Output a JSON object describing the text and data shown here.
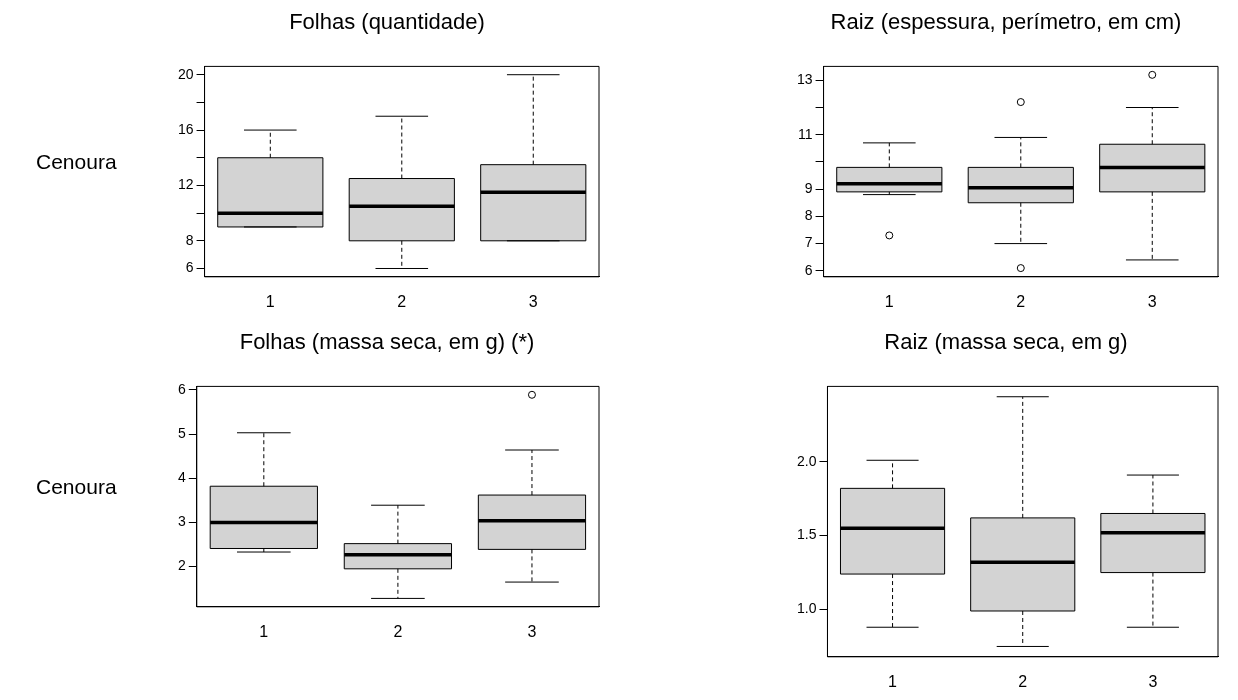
{
  "chart_data": [
    {
      "type": "box",
      "title": "Folhas (quantidade)",
      "annotations": [
        "Cenoura"
      ],
      "categories": [
        "1",
        "2",
        "3"
      ],
      "color": "#d3d3d3",
      "ylim": [
        5.4,
        20.6
      ],
      "yticks": [
        6,
        8,
        {
          "value": 10,
          "label": null
        },
        12,
        {
          "value": 14,
          "label": null
        },
        16,
        {
          "value": 18,
          "label": null
        },
        20
      ],
      "grid": false,
      "legend": false,
      "boxes": [
        {
          "low": 9,
          "q1": 9,
          "median": 10,
          "q3": 14,
          "high": 16
        },
        {
          "low": 6,
          "q1": 8,
          "median": 10.5,
          "q3": 12.5,
          "high": 17
        },
        {
          "low": 8,
          "q1": 8,
          "median": 11.5,
          "q3": 13.5,
          "high": 20
        }
      ]
    },
    {
      "type": "box",
      "title": "Raiz (espessura, perímetro, em cm)",
      "categories": [
        "1",
        "2",
        "3"
      ],
      "color": "#d3d3d3",
      "ylim": [
        5.78,
        13.51
      ],
      "yticks": [
        6,
        7,
        8,
        9,
        {
          "value": 10,
          "label": null
        },
        11,
        {
          "value": 12,
          "label": null
        },
        13
      ],
      "grid": false,
      "legend": false,
      "boxes": [
        {
          "low": 8.8,
          "q1": 8.9,
          "median": 9.2,
          "q3": 9.8,
          "high": 10.7,
          "outliers": [
            7.3
          ]
        },
        {
          "low": 7.0,
          "q1": 8.5,
          "median": 9.05,
          "q3": 9.8,
          "high": 10.9,
          "outliers": [
            12.2,
            6.1
          ]
        },
        {
          "low": 6.4,
          "q1": 8.9,
          "median": 9.8,
          "q3": 10.65,
          "high": 12.0,
          "outliers": [
            13.2
          ]
        }
      ]
    },
    {
      "type": "box",
      "title": "Folhas (massa seca, em g) (*)",
      "annotations": [
        "Cenoura"
      ],
      "categories": [
        "1",
        "2",
        "3"
      ],
      "color": "#d3d3d3",
      "ylim": [
        1.09,
        6.08
      ],
      "yticks": [
        2,
        3,
        4,
        5,
        6
      ],
      "grid": false,
      "legend": false,
      "boxes": [
        {
          "low": 2.33,
          "q1": 2.41,
          "median": 3.0,
          "q3": 3.82,
          "high": 5.03
        },
        {
          "low": 1.28,
          "q1": 1.95,
          "median": 2.27,
          "q3": 2.52,
          "high": 3.39
        },
        {
          "low": 1.65,
          "q1": 2.39,
          "median": 3.04,
          "q3": 3.62,
          "high": 4.64,
          "outliers": [
            5.89
          ]
        }
      ]
    },
    {
      "type": "box",
      "title": "Raiz (massa seca, em g)",
      "categories": [
        "1",
        "2",
        "3"
      ],
      "color": "#d3d3d3",
      "ylim": [
        0.68,
        2.51
      ],
      "yticks": [
        {
          "value": 1,
          "label": "1.0"
        },
        {
          "value": 1.5,
          "label": "1.5"
        },
        {
          "value": 2,
          "label": "2.0"
        }
      ],
      "grid": false,
      "legend": false,
      "boxes": [
        {
          "low": 0.88,
          "q1": 1.24,
          "median": 1.55,
          "q3": 1.82,
          "high": 2.01
        },
        {
          "low": 0.75,
          "q1": 0.99,
          "median": 1.32,
          "q3": 1.62,
          "high": 2.44
        },
        {
          "low": 0.88,
          "q1": 1.25,
          "median": 1.52,
          "q3": 1.65,
          "high": 1.91
        }
      ]
    }
  ]
}
